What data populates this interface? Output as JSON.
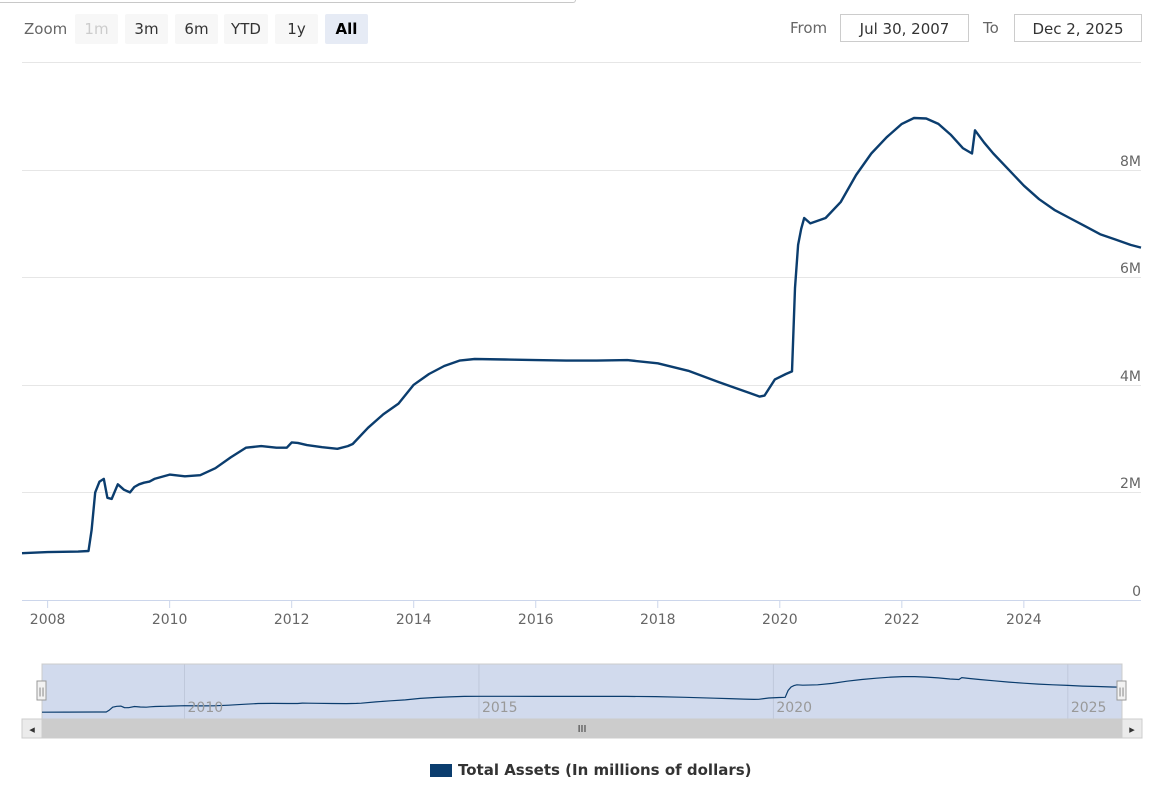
{
  "range_selector": {
    "zoom_label": "Zoom",
    "buttons": [
      {
        "label": "1m",
        "state": "disabled"
      },
      {
        "label": "3m",
        "state": "normal"
      },
      {
        "label": "6m",
        "state": "normal"
      },
      {
        "label": "YTD",
        "state": "normal"
      },
      {
        "label": "1y",
        "state": "normal"
      },
      {
        "label": "All",
        "state": "active"
      }
    ],
    "from_label": "From",
    "from_value": "Jul 30, 2007",
    "to_label": "To",
    "to_value": "Dec 2, 2025"
  },
  "chart_data": {
    "type": "line",
    "title": "",
    "xlabel": "",
    "ylabel": "",
    "x_tick_labels": [
      "2008",
      "2010",
      "2012",
      "2014",
      "2016",
      "2018",
      "2020",
      "2022",
      "2024"
    ],
    "y_tick_labels": [
      "0",
      "2M",
      "4M",
      "6M",
      "8M"
    ],
    "y_ticks": [
      0,
      2000000,
      4000000,
      6000000,
      8000000
    ],
    "xlim": [
      2007.58,
      2025.92
    ],
    "ylim": [
      0,
      10000000
    ],
    "grid": true,
    "legend_position": "bottom-center",
    "series": [
      {
        "name": "Total Assets (In millions of dollars)",
        "color": "#0b3d6e",
        "x": [
          2007.58,
          2008.0,
          2008.5,
          2008.67,
          2008.72,
          2008.78,
          2008.85,
          2008.92,
          2008.98,
          2009.05,
          2009.15,
          2009.25,
          2009.35,
          2009.42,
          2009.5,
          2009.58,
          2009.67,
          2009.75,
          2010.0,
          2010.25,
          2010.5,
          2010.75,
          2011.0,
          2011.25,
          2011.5,
          2011.75,
          2011.92,
          2012.0,
          2012.1,
          2012.25,
          2012.5,
          2012.75,
          2012.92,
          2013.0,
          2013.25,
          2013.5,
          2013.75,
          2014.0,
          2014.25,
          2014.5,
          2014.75,
          2015.0,
          2015.5,
          2016.0,
          2016.5,
          2017.0,
          2017.5,
          2018.0,
          2018.5,
          2019.0,
          2019.25,
          2019.5,
          2019.67,
          2019.75,
          2019.92,
          2020.1,
          2020.2,
          2020.25,
          2020.3,
          2020.35,
          2020.4,
          2020.5,
          2020.75,
          2021.0,
          2021.25,
          2021.5,
          2021.75,
          2022.0,
          2022.2,
          2022.4,
          2022.6,
          2022.8,
          2023.0,
          2023.15,
          2023.2,
          2023.35,
          2023.5,
          2023.75,
          2024.0,
          2024.25,
          2024.5,
          2024.75,
          2025.0,
          2025.25,
          2025.5,
          2025.75,
          2025.92
        ],
        "y": [
          870000,
          890000,
          900000,
          910000,
          1300000,
          2000000,
          2200000,
          2250000,
          1900000,
          1880000,
          2150000,
          2050000,
          2000000,
          2100000,
          2150000,
          2180000,
          2200000,
          2250000,
          2330000,
          2300000,
          2320000,
          2450000,
          2650000,
          2830000,
          2860000,
          2830000,
          2830000,
          2930000,
          2920000,
          2880000,
          2840000,
          2810000,
          2860000,
          2900000,
          3200000,
          3450000,
          3650000,
          4000000,
          4200000,
          4350000,
          4450000,
          4480000,
          4470000,
          4460000,
          4450000,
          4450000,
          4460000,
          4400000,
          4260000,
          4050000,
          3950000,
          3850000,
          3780000,
          3800000,
          4100000,
          4200000,
          4250000,
          5800000,
          6600000,
          6900000,
          7100000,
          7000000,
          7100000,
          7400000,
          7900000,
          8300000,
          8600000,
          8850000,
          8960000,
          8950000,
          8850000,
          8650000,
          8400000,
          8300000,
          8730000,
          8500000,
          8300000,
          8000000,
          7700000,
          7450000,
          7250000,
          7100000,
          6950000,
          6800000,
          6700000,
          6600000,
          6550000
        ]
      }
    ]
  },
  "navigator": {
    "x_tick_labels": [
      "2010",
      "2015",
      "2020",
      "2025"
    ],
    "x_ticks": [
      2010,
      2015,
      2020,
      2025
    ],
    "scrollbar_grip": "III",
    "left_arrow": "◂",
    "right_arrow": "▸",
    "handle_glyph": "||"
  },
  "legend": {
    "label": "Total Assets (In millions of dollars)",
    "color": "#0b3d6e"
  }
}
